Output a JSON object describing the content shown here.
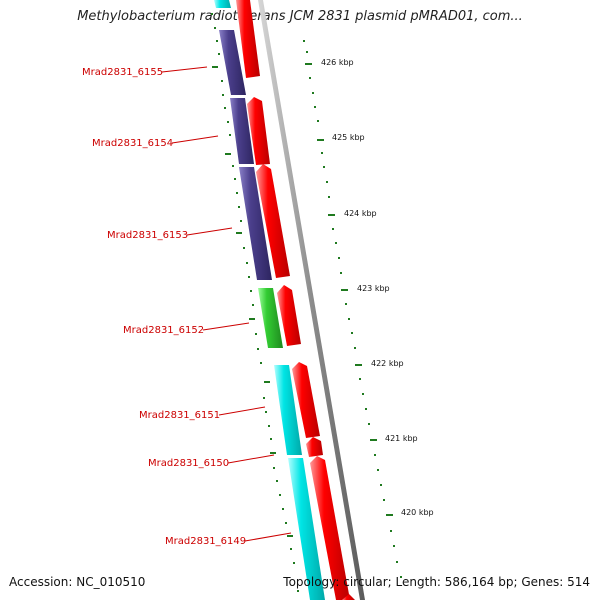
{
  "title": "Methylobacterium radiotolerans JCM 2831 plasmid pMRAD01, com...",
  "footer": {
    "accession": "Accession: NC_010510",
    "summary": "Topology: circular; Length: 586,164 bp; Genes: 514"
  },
  "gene_labels": [
    "Mrad2831_6155",
    "Mrad2831_6154",
    "Mrad2831_6153",
    "Mrad2831_6152",
    "Mrad2831_6151",
    "Mrad2831_6150",
    "Mrad2831_6149"
  ],
  "scale_labels": [
    "426 kbp",
    "425 kbp",
    "424 kbp",
    "423 kbp",
    "422 kbp",
    "421 kbp",
    "420 kbp"
  ],
  "colors": {
    "cds_forward": "#ff0000",
    "cds_cog_purple": "#4b3f8c",
    "cds_cog_green": "#33cc33",
    "cds_cog_cyan": "#00e5e5",
    "label": "#cc0000",
    "tick": "#1f7a1f",
    "backbone": "#808080"
  }
}
